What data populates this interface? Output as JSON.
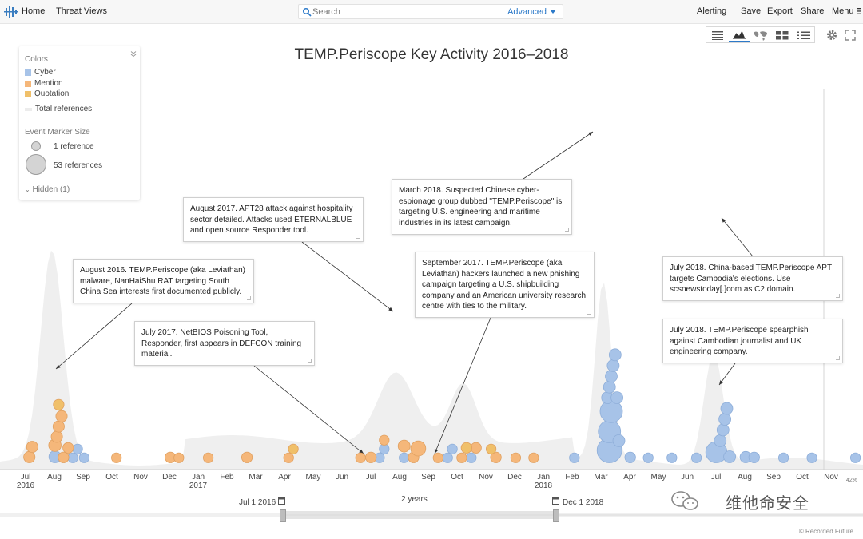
{
  "nav": {
    "home": "Home",
    "threat_views": "Threat Views",
    "alerting": "Alerting",
    "save": "Save",
    "export": "Export",
    "share": "Share",
    "menu": "Menu"
  },
  "search": {
    "placeholder": "Search",
    "advanced": "Advanced"
  },
  "title": "TEMP.Periscope Key Activity 2016–2018",
  "legend": {
    "colors_title": "Colors",
    "items": [
      {
        "label": "Cyber",
        "color": "#a7c3e8"
      },
      {
        "label": "Mention",
        "color": "#f5b77a"
      },
      {
        "label": "Quotation",
        "color": "#f0c06a"
      },
      {
        "label": "Total references",
        "color": "#ececec"
      }
    ],
    "size_title": "Event Marker Size",
    "size_small": "1 reference",
    "size_large": "53 references",
    "hidden": "Hidden (1)"
  },
  "callouts": [
    {
      "text": "August 2016. TEMP.Periscope (aka Leviathan) malware, NanHaiShu RAT targeting South China Sea interests first documented publicly."
    },
    {
      "text": "July 2017. NetBIOS Poisoning Tool, Responder, first appears in DEFCON training material."
    },
    {
      "text": "August 2017. APT28 attack against hospitality sector detailed. Attacks used ETERNALBLUE and open source Responder tool."
    },
    {
      "text": "March 2018. Suspected Chinese cyber-espionage group dubbed \"TEMP.Periscope\" is targeting U.S. engineering and maritime industries in its latest campaign."
    },
    {
      "text": "September 2017. TEMP.Periscope (aka Leviathan) hackers launched a new phishing campaign targeting a U.S. shipbuilding company and an American university research centre with ties to the military."
    },
    {
      "text": "July 2018. China-based TEMP.Periscope APT targets Cambodia's elections. Use scsnewstoday[.]com as C2 domain."
    },
    {
      "text": "July 2018. TEMP.Periscope spearphish against Cambodian journalist and UK engineering company."
    }
  ],
  "axis": {
    "months": [
      "Jul",
      "Aug",
      "Sep",
      "Oct",
      "Nov",
      "Dec",
      "Jan",
      "Feb",
      "Mar",
      "Apr",
      "May",
      "Jun",
      "Jul",
      "Aug",
      "Sep",
      "Oct",
      "Nov",
      "Dec",
      "Jan",
      "Feb",
      "Mar",
      "Apr",
      "May",
      "Jun",
      "Jul",
      "Aug",
      "Sep",
      "Oct",
      "Nov"
    ],
    "years": [
      "2016",
      "2017",
      "2018"
    ]
  },
  "range": {
    "start": "Jul 1 2016",
    "span": "2 years",
    "end": "Dec 1 2018",
    "zoom": "42%"
  },
  "brand": "© Recorded Future",
  "watermark": "维他命安全",
  "chart_data": {
    "type": "scatter",
    "title": "TEMP.Periscope Key Activity 2016–2018",
    "x_range": [
      "2016-07-01",
      "2018-11-30"
    ],
    "series": [
      {
        "name": "Cyber",
        "color": "#a7c3e8",
        "points": [
          {
            "x": "2016-08-01",
            "refs": 5
          },
          {
            "x": "2016-08-20",
            "refs": 2
          },
          {
            "x": "2016-08-25",
            "refs": 2
          },
          {
            "x": "2016-09-01",
            "refs": 2
          },
          {
            "x": "2017-07-10",
            "refs": 2
          },
          {
            "x": "2017-07-15",
            "refs": 2
          },
          {
            "x": "2017-08-05",
            "refs": 2
          },
          {
            "x": "2017-09-20",
            "refs": 2
          },
          {
            "x": "2017-09-25",
            "refs": 2
          },
          {
            "x": "2017-10-15",
            "refs": 2
          },
          {
            "x": "2018-02-01",
            "refs": 2
          },
          {
            "x": "2018-03-10",
            "refs": 53
          },
          {
            "x": "2018-03-10",
            "refs": 40
          },
          {
            "x": "2018-03-12",
            "refs": 40
          },
          {
            "x": "2018-03-08",
            "refs": 5
          },
          {
            "x": "2018-03-10",
            "refs": 5
          },
          {
            "x": "2018-03-12",
            "refs": 5
          },
          {
            "x": "2018-03-14",
            "refs": 5
          },
          {
            "x": "2018-03-16",
            "refs": 5
          },
          {
            "x": "2018-03-18",
            "refs": 5
          },
          {
            "x": "2018-03-20",
            "refs": 5
          },
          {
            "x": "2018-04-01",
            "refs": 3
          },
          {
            "x": "2018-04-20",
            "refs": 2
          },
          {
            "x": "2018-05-15",
            "refs": 2
          },
          {
            "x": "2018-06-10",
            "refs": 2
          },
          {
            "x": "2018-07-01",
            "refs": 35
          },
          {
            "x": "2018-07-05",
            "refs": 5
          },
          {
            "x": "2018-07-08",
            "refs": 5
          },
          {
            "x": "2018-07-10",
            "refs": 5
          },
          {
            "x": "2018-07-12",
            "refs": 5
          },
          {
            "x": "2018-07-15",
            "refs": 5
          },
          {
            "x": "2018-08-01",
            "refs": 4
          },
          {
            "x": "2018-08-10",
            "refs": 3
          },
          {
            "x": "2018-09-10",
            "refs": 2
          },
          {
            "x": "2018-10-10",
            "refs": 2
          },
          {
            "x": "2018-11-25",
            "refs": 2
          }
        ]
      },
      {
        "name": "Mention",
        "color": "#f5b77a",
        "points": [
          {
            "x": "2016-07-05",
            "refs": 4
          },
          {
            "x": "2016-07-08",
            "refs": 4
          },
          {
            "x": "2016-08-01",
            "refs": 6
          },
          {
            "x": "2016-08-03",
            "refs": 4
          },
          {
            "x": "2016-08-05",
            "refs": 4
          },
          {
            "x": "2016-08-08",
            "refs": 4
          },
          {
            "x": "2016-08-10",
            "refs": 3
          },
          {
            "x": "2016-08-15",
            "refs": 3
          },
          {
            "x": "2016-10-05",
            "refs": 2
          },
          {
            "x": "2016-12-01",
            "refs": 3
          },
          {
            "x": "2016-12-10",
            "refs": 2
          },
          {
            "x": "2017-01-10",
            "refs": 2
          },
          {
            "x": "2017-02-20",
            "refs": 3
          },
          {
            "x": "2017-04-05",
            "refs": 2
          },
          {
            "x": "2017-06-20",
            "refs": 2
          },
          {
            "x": "2017-07-01",
            "refs": 3
          },
          {
            "x": "2017-07-15",
            "refs": 2
          },
          {
            "x": "2017-08-05",
            "refs": 5
          },
          {
            "x": "2017-08-15",
            "refs": 3
          },
          {
            "x": "2017-08-20",
            "refs": 12
          },
          {
            "x": "2017-09-10",
            "refs": 2
          },
          {
            "x": "2017-10-05",
            "refs": 2
          },
          {
            "x": "2017-10-20",
            "refs": 3
          },
          {
            "x": "2017-11-10",
            "refs": 3
          },
          {
            "x": "2017-12-01",
            "refs": 2
          },
          {
            "x": "2017-12-20",
            "refs": 2
          }
        ]
      },
      {
        "name": "Quotation",
        "color": "#f0c06a",
        "points": [
          {
            "x": "2016-08-05",
            "refs": 3
          },
          {
            "x": "2017-04-10",
            "refs": 2
          },
          {
            "x": "2017-10-10",
            "refs": 3
          },
          {
            "x": "2017-11-05",
            "refs": 2
          }
        ]
      }
    ]
  }
}
